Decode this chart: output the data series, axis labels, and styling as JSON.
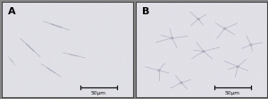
{
  "panel_A": {
    "label": "A",
    "bg_color_r": 0.878,
    "bg_color_g": 0.878,
    "bg_color_b": 0.902,
    "scalebar_text": "50μm"
  },
  "panel_B": {
    "label": "B",
    "bg_color_r": 0.882,
    "bg_color_g": 0.878,
    "bg_color_b": 0.906,
    "scalebar_text": "50μm"
  },
  "border_color": "#444444",
  "border_lw": 0.8,
  "label_fontsize": 8,
  "label_color": "#000000",
  "scalebar_fontsize": 4.2,
  "scalebar_color": "#111111",
  "fig_width": 3.0,
  "fig_height": 1.11,
  "dpi": 100,
  "outer_border_color": "#666666",
  "outer_border_lw": 1.0
}
